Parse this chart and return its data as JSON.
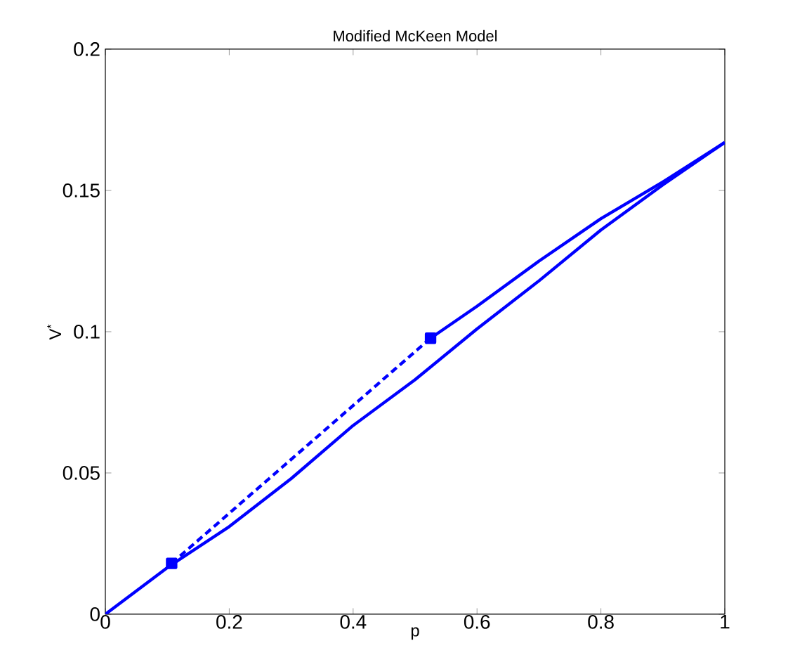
{
  "chart_data": {
    "type": "line",
    "title": "Modified McKeen Model",
    "xlabel": "p",
    "ylabel": "V$^{*}$",
    "xlim": [
      0,
      1
    ],
    "ylim": [
      0,
      0.2
    ],
    "xticks": [
      0,
      0.2,
      0.4,
      0.6,
      0.8,
      1
    ],
    "yticks": [
      0,
      0.05,
      0.1,
      0.15,
      0.2
    ],
    "grid": false,
    "legend": false,
    "series": [
      {
        "color": "#0000ff",
        "line_style": "solid",
        "marker": "none",
        "x": [
          0,
          0.1,
          0.2,
          0.3,
          0.4,
          0.5,
          0.6,
          0.7,
          0.8,
          0.9,
          1
        ],
        "values": [
          0,
          0.0165,
          0.031,
          0.048,
          0.0668,
          0.083,
          0.101,
          0.118,
          0.136,
          0.152,
          0.167
        ]
      },
      {
        "color": "#0000ff",
        "line_style": "solid",
        "marker": "none",
        "x": [
          0.525,
          0.6,
          0.7,
          0.8,
          0.9,
          1
        ],
        "values": [
          0.0977,
          0.109,
          0.125,
          0.14,
          0.153,
          0.167
        ]
      },
      {
        "color": "#0000ff",
        "line_style": "dashed",
        "marker": "square",
        "x": [
          0.107,
          0.525
        ],
        "values": [
          0.018,
          0.0977
        ]
      }
    ]
  }
}
